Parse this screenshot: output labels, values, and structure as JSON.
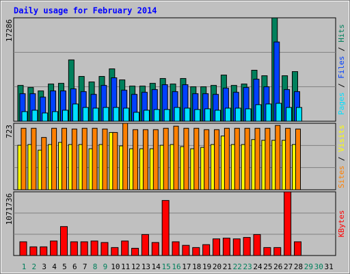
{
  "chart_data": {
    "type": "bar",
    "title": "Daily usage for February 2014",
    "categories": [
      "1",
      "2",
      "3",
      "4",
      "5",
      "6",
      "7",
      "8",
      "9",
      "10",
      "11",
      "12",
      "13",
      "14",
      "15",
      "16",
      "17",
      "18",
      "19",
      "20",
      "21",
      "22",
      "23",
      "24",
      "25",
      "26",
      "27",
      "28",
      "29",
      "30",
      "31"
    ],
    "category_colors": [
      "#00805c",
      "#00805c",
      "#000000",
      "#000000",
      "#000000",
      "#000000",
      "#000000",
      "#00805c",
      "#00805c",
      "#000000",
      "#000000",
      "#000000",
      "#000000",
      "#000000",
      "#00805c",
      "#00805c",
      "#000000",
      "#000000",
      "#000000",
      "#000000",
      "#000000",
      "#00805c",
      "#00805c",
      "#000000",
      "#000000",
      "#000000",
      "#000000",
      "#000000",
      "#00805c",
      "#00805c",
      "#000000"
    ],
    "legend_separator": " / ",
    "panels": [
      {
        "ylim": [
          0,
          17286
        ],
        "yticks": [
          17286
        ],
        "series": [
          {
            "name": "Hits",
            "color": "#00805c",
            "values": [
              5992,
              5647,
              5071,
              6223,
              6338,
              10256,
              7491,
              6569,
              7491,
              8758,
              6914,
              5877,
              5877,
              6338,
              7145,
              6223,
              7145,
              5762,
              5762,
              5992,
              7721,
              5992,
              6223,
              8528,
              7606,
              17286,
              7606,
              8297,
              null,
              null,
              null
            ]
          },
          {
            "name": "Files",
            "color": "#0040ff",
            "values": [
              4610,
              4610,
              4033,
              5071,
              5071,
              5416,
              4955,
              4494,
              5992,
              7260,
              5186,
              4494,
              4840,
              5301,
              6108,
              4955,
              6108,
              4610,
              4610,
              4494,
              5532,
              4840,
              5647,
              7030,
              5762,
              13253,
              5301,
              4955,
              null,
              null,
              null
            ]
          },
          {
            "name": "Pages",
            "color": "#00e0ff",
            "values": [
              1613,
              1844,
              1383,
              1613,
              1844,
              2881,
              2305,
              2190,
              2305,
              2305,
              2190,
              1498,
              1844,
              1959,
              1959,
              2305,
              2190,
              1959,
              2074,
              1844,
              2190,
              2190,
              2074,
              2766,
              2881,
              2996,
              2305,
              2305,
              null,
              null,
              null
            ]
          }
        ]
      },
      {
        "ylim": [
          0,
          723
        ],
        "yticks": [
          723
        ],
        "series": [
          {
            "name": "Visits",
            "color": "#ffff00",
            "values": [
              484,
              492,
              431,
              492,
              515,
              492,
              492,
              446,
              492,
              623,
              477,
              446,
              446,
              446,
              484,
              492,
              469,
              446,
              461,
              492,
              585,
              492,
              492,
              546,
              538,
              538,
              538,
              492,
              null,
              null,
              null
            ]
          },
          {
            "name": "Sites",
            "color": "#ff8000",
            "values": [
              669,
              669,
              569,
              669,
              669,
              661,
              669,
              669,
              661,
              623,
              723,
              654,
              654,
              654,
              669,
              692,
              669,
              669,
              654,
              654,
              669,
              669,
              669,
              669,
              669,
              700,
              669,
              661,
              null,
              null,
              null
            ]
          }
        ]
      },
      {
        "ylim": [
          0,
          1071736
        ],
        "yticks": [
          1071736
        ],
        "series": [
          {
            "name": "KBytes",
            "color": "#ff0000",
            "values": [
              231000,
              146000,
              146000,
              244000,
              487000,
              231000,
              231000,
              244000,
              219000,
              134000,
              244000,
              122000,
              353000,
              219000,
              926000,
              231000,
              171000,
              134000,
              183000,
              280000,
              292000,
              280000,
              304000,
              353000,
              134000,
              134000,
              1071736,
              231000,
              null,
              null,
              null
            ]
          }
        ]
      }
    ]
  }
}
